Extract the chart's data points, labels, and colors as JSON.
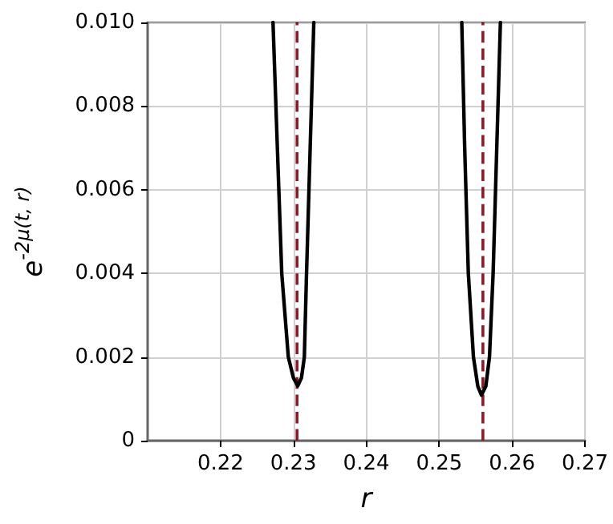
{
  "chart_data": {
    "type": "line",
    "xlabel": "r",
    "ylabel": "e$^{-2μ(t, r)}$",
    "series": [
      {
        "color": "#000000",
        "x": [
          0.2272,
          0.2278,
          0.2284,
          0.2293,
          0.23,
          0.2306,
          0.2311,
          0.2315,
          0.2318,
          0.2323,
          0.2328
        ],
        "values": [
          0.01,
          0.007,
          0.004,
          0.002,
          0.0015,
          0.00131,
          0.0015,
          0.002,
          0.004,
          0.007,
          0.01
        ]
      },
      {
        "color": "#000000",
        "x": [
          0.2531,
          0.2535,
          0.254,
          0.2547,
          0.2553,
          0.2558,
          0.2564,
          0.2569,
          0.2574,
          0.2579,
          0.2584
        ],
        "values": [
          0.01,
          0.007,
          0.004,
          0.002,
          0.0013,
          0.00109,
          0.0013,
          0.002,
          0.004,
          0.007,
          0.01
        ]
      }
    ],
    "xlim": [
      0.21,
      0.27
    ],
    "xticks": [
      0.22,
      0.23,
      0.24,
      0.25,
      0.26,
      0.27
    ],
    "ylim": [
      0,
      0.01
    ],
    "yticks": [
      0,
      0.002,
      0.004,
      0.006,
      0.008,
      {
        "value": 0.01,
        "label": "0.010"
      }
    ],
    "ref_lines": [
      {
        "axis": "x",
        "value": 0.2305,
        "color": "#8b1a2a",
        "line_style": "dashed"
      },
      {
        "axis": "x",
        "value": 0.256,
        "color": "#8b1a2a",
        "line_style": "dashed"
      }
    ],
    "grid": true,
    "marker": "none",
    "line_style": "solid"
  }
}
